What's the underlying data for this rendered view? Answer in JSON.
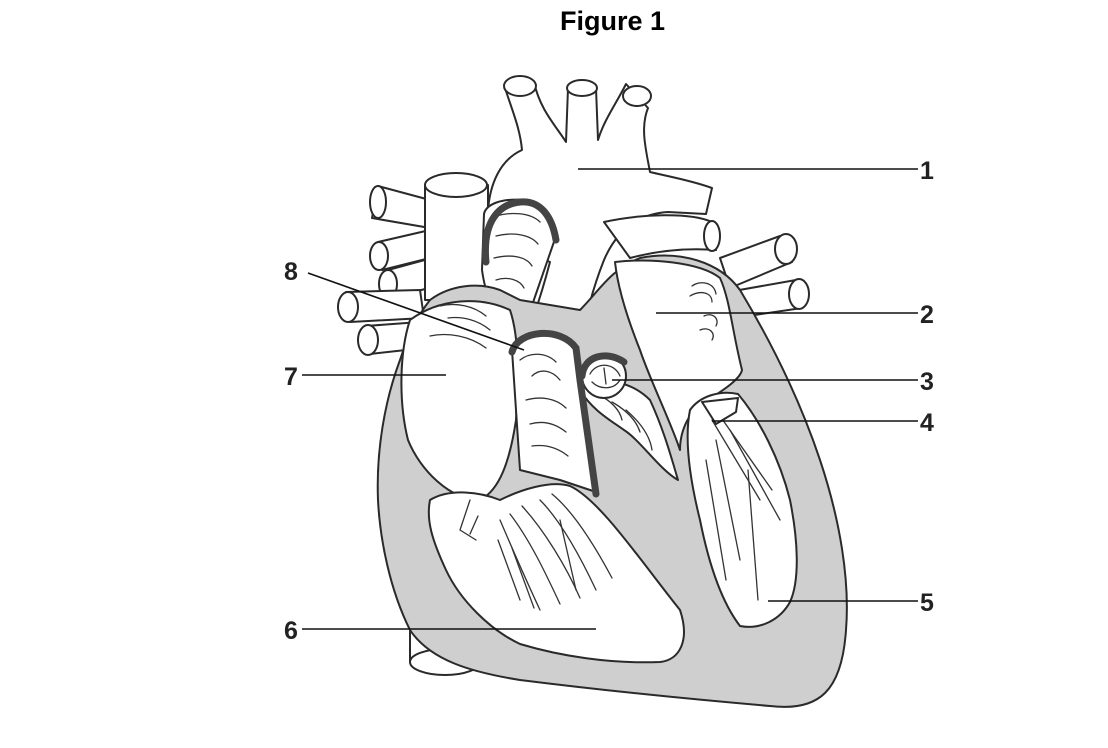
{
  "figure": {
    "title": "Figure 1",
    "labels": [
      "1",
      "2",
      "3",
      "4",
      "5",
      "6",
      "7",
      "8"
    ]
  },
  "colors": {
    "heart_wall": "#cfcfcf",
    "outline": "#2a2a2a",
    "background": "#ffffff"
  }
}
